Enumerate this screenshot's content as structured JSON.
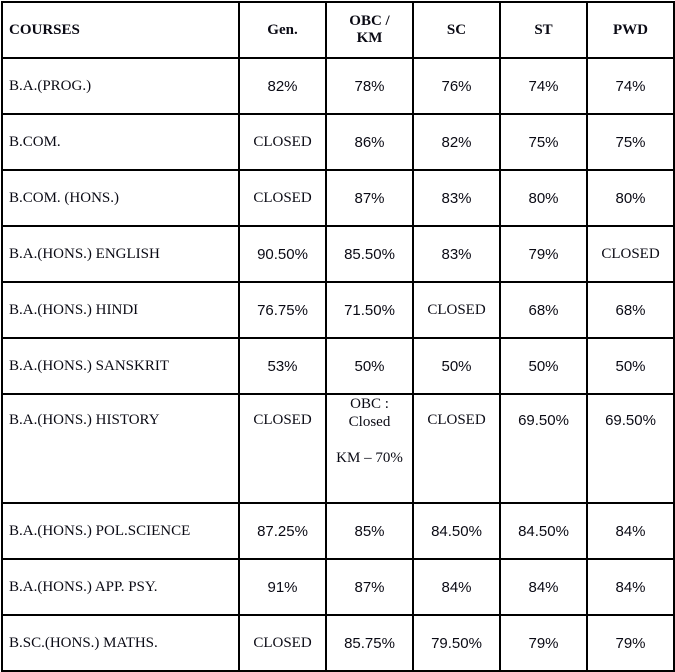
{
  "headers": [
    "COURSES",
    "Gen.",
    "OBC / KM",
    "SC",
    "ST",
    "PWD"
  ],
  "header_obc_lines": [
    "OBC /",
    "KM"
  ],
  "rows": [
    {
      "course": "B.A.(PROG.)",
      "values": [
        "82%",
        "78%",
        "76%",
        "74%",
        "74%"
      ]
    },
    {
      "course": "B.COM.",
      "values": [
        "CLOSED",
        "86%",
        "82%",
        "75%",
        "75%"
      ]
    },
    {
      "course": "B.COM. (HONS.)",
      "values": [
        "CLOSED",
        "87%",
        "83%",
        "80%",
        "80%"
      ]
    },
    {
      "course": "B.A.(HONS.) ENGLISH",
      "values": [
        "90.50%",
        "85.50%",
        "83%",
        "79%",
        "CLOSED"
      ]
    },
    {
      "course": "B.A.(HONS.) HINDI",
      "values": [
        "76.75%",
        "71.50%",
        "CLOSED",
        "68%",
        "68%"
      ]
    },
    {
      "course": "B.A.(HONS.) SANSKRIT",
      "values": [
        "53%",
        "50%",
        "50%",
        "50%",
        "50%"
      ]
    },
    {
      "course": "B.A.(HONS.) HISTORY",
      "values": [
        "CLOSED",
        "OBC : Closed KM – 70%",
        "CLOSED",
        "69.50%",
        "69.50%"
      ],
      "obc_lines": [
        "OBC :",
        "Closed",
        "KM – 70%"
      ]
    },
    {
      "course": "B.A.(HONS.) POL.SCIENCE",
      "values": [
        "87.25%",
        "85%",
        "84.50%",
        "84.50%",
        "84%"
      ]
    },
    {
      "course": "B.A.(HONS.) APP. PSY.",
      "values": [
        "91%",
        "87%",
        "84%",
        "84%",
        "84%"
      ]
    },
    {
      "course": "B.SC.(HONS.) MATHS.",
      "values": [
        "CLOSED",
        "85.75%",
        "79.50%",
        "79%",
        "79%"
      ]
    }
  ]
}
